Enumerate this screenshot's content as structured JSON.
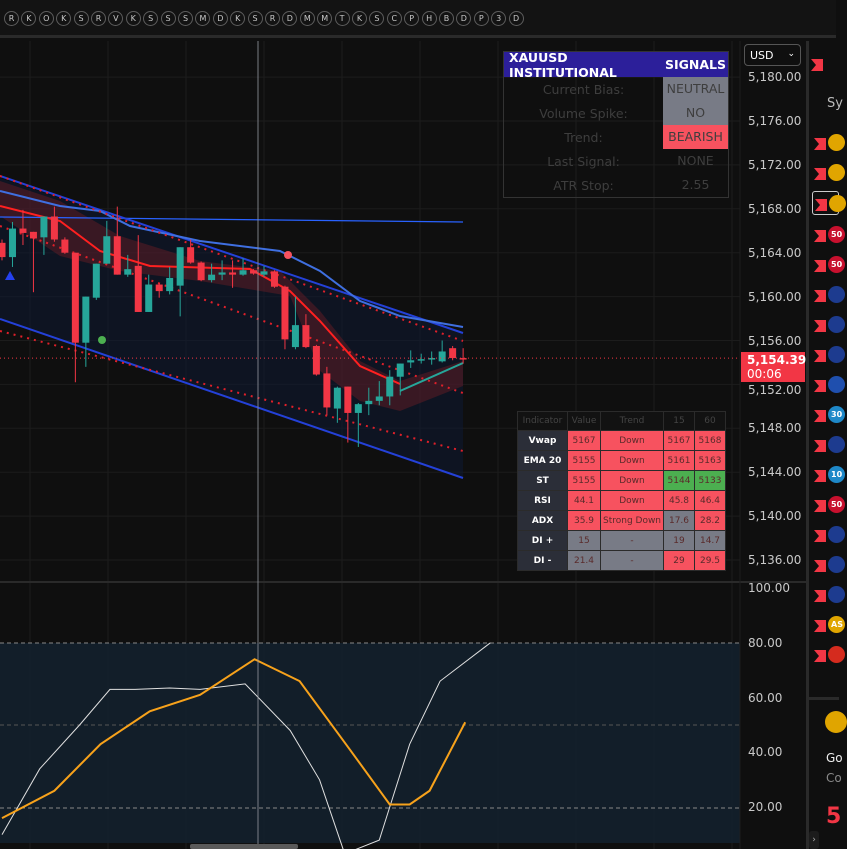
{
  "topbar": {
    "symbols": [
      "R",
      "K",
      "O",
      "K",
      "S",
      "R",
      "V",
      "K",
      "S",
      "S",
      "S",
      "M",
      "D",
      "K",
      "S",
      "R",
      "D",
      "M",
      "M",
      "T",
      "K",
      "S",
      "C",
      "P",
      "H",
      "B",
      "D",
      "P",
      "3",
      "D"
    ]
  },
  "currency": {
    "value": "USD"
  },
  "signals": {
    "title": "XAUUSD INSTITUTIONAL",
    "title2": "SIGNALS",
    "rows": [
      {
        "label": "Current Bias:",
        "value": "NEUTRAL",
        "color": "#787b86"
      },
      {
        "label": "Volume Spike:",
        "value": "NO",
        "color": "#787b86"
      },
      {
        "label": "Trend:",
        "value": "BEARISH",
        "color": "#f7525f"
      },
      {
        "label": "Last Signal:",
        "value": "NONE",
        "color": ""
      },
      {
        "label": "ATR Stop:",
        "value": "2.55",
        "color": ""
      }
    ]
  },
  "indicator_table": {
    "headers": [
      "Indicator",
      "Value",
      "Trend",
      "15",
      "60"
    ],
    "rows": [
      {
        "cells": [
          "Vwap",
          "5167",
          "Down",
          "5167",
          "5168"
        ],
        "colors": [
          "r",
          "r",
          "r",
          "r"
        ]
      },
      {
        "cells": [
          "EMA 20",
          "5155",
          "Down",
          "5161",
          "5163"
        ],
        "colors": [
          "r",
          "r",
          "r",
          "r"
        ]
      },
      {
        "cells": [
          "ST",
          "5155",
          "Down",
          "5144",
          "5133"
        ],
        "colors": [
          "r",
          "r",
          "g",
          "g"
        ]
      },
      {
        "cells": [
          "RSI",
          "44.1",
          "Down",
          "45.8",
          "46.4"
        ],
        "colors": [
          "r",
          "r",
          "r",
          "r"
        ]
      },
      {
        "cells": [
          "ADX",
          "35.9",
          "Strong Down",
          "17.6",
          "28.2"
        ],
        "colors": [
          "r",
          "r",
          "n",
          "r"
        ]
      },
      {
        "cells": [
          "DI +",
          "15",
          "-",
          "19",
          "14.7"
        ],
        "colors": [
          "n",
          "n",
          "n",
          "n"
        ]
      },
      {
        "cells": [
          "DI -",
          "21.4",
          "-",
          "29",
          "29.5"
        ],
        "colors": [
          "n",
          "n",
          "r",
          "r"
        ]
      }
    ]
  },
  "price_axis": {
    "labels": [
      "5,180.00",
      "5,176.00",
      "5,172.00",
      "5,168.00",
      "5,164.00",
      "5,160.00",
      "5,156.00",
      "5,152.00",
      "5,148.00",
      "5,144.00",
      "5,140.00",
      "5,136.00"
    ],
    "values": [
      5180,
      5176,
      5172,
      5168,
      5164,
      5160,
      5156,
      5152,
      5148,
      5144,
      5140,
      5136
    ]
  },
  "last_price": {
    "price": "5,154.39",
    "countdown": "00:06",
    "value": 5154.39
  },
  "osc_axis": {
    "labels": [
      "100.00",
      "80.00",
      "60.00",
      "40.00",
      "20.00"
    ],
    "values": [
      100,
      80,
      60,
      40,
      20
    ]
  },
  "colors": {
    "up": "#26a69a",
    "down": "#f23645",
    "osc_fast": "#e0e0e0",
    "osc_slow": "#f7a21b"
  },
  "candles": [
    [
      5164.9,
      5165.2,
      5163.3,
      5163.6
    ],
    [
      5163.6,
      5166.8,
      5162.7,
      5166.2
    ],
    [
      5166.2,
      5167.9,
      5164.7,
      5165.8
    ],
    [
      5165.9,
      5165.9,
      5160.4,
      5165.3
    ],
    [
      5165.4,
      5167.3,
      5163.8,
      5167.3
    ],
    [
      5167.3,
      5168.2,
      5165.0,
      5165.2
    ],
    [
      5165.2,
      5165.4,
      5163.9,
      5164.0
    ],
    [
      5164.0,
      5164.0,
      5152.2,
      5155.8
    ],
    [
      5155.8,
      5160.0,
      5153.6,
      5160.0
    ],
    [
      5159.9,
      5163.0,
      5159.7,
      5163.0
    ],
    [
      5163.0,
      5166.9,
      5163.0,
      5165.5
    ],
    [
      5165.5,
      5168.2,
      5162.0,
      5162.0
    ],
    [
      5162.0,
      5163.8,
      5161.8,
      5162.5
    ],
    [
      5162.8,
      5165.6,
      5158.6,
      5158.6
    ],
    [
      5158.6,
      5162.0,
      5158.6,
      5161.1
    ],
    [
      5161.1,
      5161.2,
      5159.9,
      5160.5
    ],
    [
      5160.5,
      5162.7,
      5160.2,
      5161.7
    ],
    [
      5161.0,
      5164.5,
      5158.2,
      5164.5
    ],
    [
      5164.5,
      5165.2,
      5163.0,
      5163.1
    ],
    [
      5163.1,
      5163.2,
      5161.4,
      5161.5
    ],
    [
      5161.5,
      5163.0,
      5161.3,
      5162.0
    ],
    [
      5162.0,
      5163.3,
      5161.5,
      5162.2
    ],
    [
      5162.2,
      5163.3,
      5160.8,
      5162.0
    ],
    [
      5162.0,
      5163.5,
      5161.9,
      5162.4
    ],
    [
      5162.4,
      5162.5,
      5162.0,
      5162.1
    ],
    [
      5162.0,
      5162.8,
      5161.8,
      5162.3
    ],
    [
      5162.3,
      5162.4,
      5160.8,
      5160.9
    ],
    [
      5160.9,
      5161.0,
      5155.2,
      5156.1
    ],
    [
      5155.4,
      5160.0,
      5155.2,
      5157.4
    ],
    [
      5157.4,
      5158.4,
      5155.3,
      5155.4
    ],
    [
      5155.5,
      5155.6,
      5152.8,
      5152.9
    ],
    [
      5153.0,
      5153.6,
      5149.2,
      5149.9
    ],
    [
      5149.8,
      5151.8,
      5148.5,
      5151.7
    ],
    [
      5151.8,
      5151.8,
      5146.7,
      5149.4
    ],
    [
      5149.4,
      5150.3,
      5146.3,
      5150.2
    ],
    [
      5150.2,
      5151.7,
      5149.2,
      5150.5
    ],
    [
      5150.5,
      5152.3,
      5150.1,
      5150.9
    ],
    [
      5150.9,
      5153.3,
      5150.1,
      5152.7
    ],
    [
      5152.7,
      5153.9,
      5151.0,
      5153.9
    ],
    [
      5154.0,
      5155.1,
      5153.5,
      5154.2
    ],
    [
      5154.2,
      5154.8,
      5153.9,
      5154.3
    ],
    [
      5154.3,
      5155.0,
      5153.8,
      5154.4
    ],
    [
      5154.1,
      5156.0,
      5154.0,
      5155.0
    ],
    [
      5155.3,
      5155.5,
      5154.2,
      5154.4
    ],
    [
      5154.4,
      5155.3,
      5153.9,
      5154.39
    ]
  ],
  "oscillator": {
    "fast": [
      [
        0,
        10
      ],
      [
        3.6,
        34
      ],
      [
        7.4,
        50
      ],
      [
        10.3,
        63
      ],
      [
        12.7,
        63
      ],
      [
        16,
        63.5
      ],
      [
        18.9,
        63
      ],
      [
        23.2,
        65
      ],
      [
        27.5,
        48
      ],
      [
        30.3,
        30
      ],
      [
        32.7,
        3
      ],
      [
        36,
        8
      ],
      [
        38.9,
        43
      ],
      [
        41.8,
        66
      ],
      [
        46.6,
        80
      ]
    ],
    "slow": [
      [
        0,
        16
      ],
      [
        5,
        26
      ],
      [
        9.4,
        43
      ],
      [
        14.1,
        55
      ],
      [
        18.9,
        61
      ],
      [
        24.1,
        74
      ],
      [
        28.4,
        66
      ],
      [
        33.2,
        41
      ],
      [
        37,
        21
      ],
      [
        38.9,
        21
      ],
      [
        40.8,
        26
      ],
      [
        44.2,
        51
      ]
    ]
  },
  "watchlist": {
    "header": "Sy",
    "items": [
      {
        "badge": "",
        "color": "#e0a500"
      },
      {
        "badge": "",
        "color": "#e0a500"
      },
      {
        "badge": "",
        "color": "#e0a500",
        "selected": true
      },
      {
        "badge": "50",
        "color": "#c8102e"
      },
      {
        "badge": "50",
        "color": "#c8102e"
      },
      {
        "badge": "",
        "color": "#1d3b8f"
      },
      {
        "badge": "",
        "color": "#1d3b8f"
      },
      {
        "badge": "",
        "color": "#1d3b8f"
      },
      {
        "badge": "",
        "color": "#1f4fae"
      },
      {
        "badge": "30",
        "color": "#1e88c8"
      },
      {
        "badge": "",
        "color": "#1d3b8f"
      },
      {
        "badge": "10",
        "color": "#1e88c8"
      },
      {
        "badge": "50",
        "color": "#c8102e"
      },
      {
        "badge": "",
        "color": "#1d3b8f"
      },
      {
        "badge": "",
        "color": "#1d3b8f"
      },
      {
        "badge": "",
        "color": "#1d3b8f"
      },
      {
        "badge": "AS",
        "color": "#e0a500"
      },
      {
        "badge": "",
        "color": "#d52b1e"
      }
    ]
  },
  "details": {
    "name": "Go",
    "sub": "Co",
    "price": "5"
  }
}
